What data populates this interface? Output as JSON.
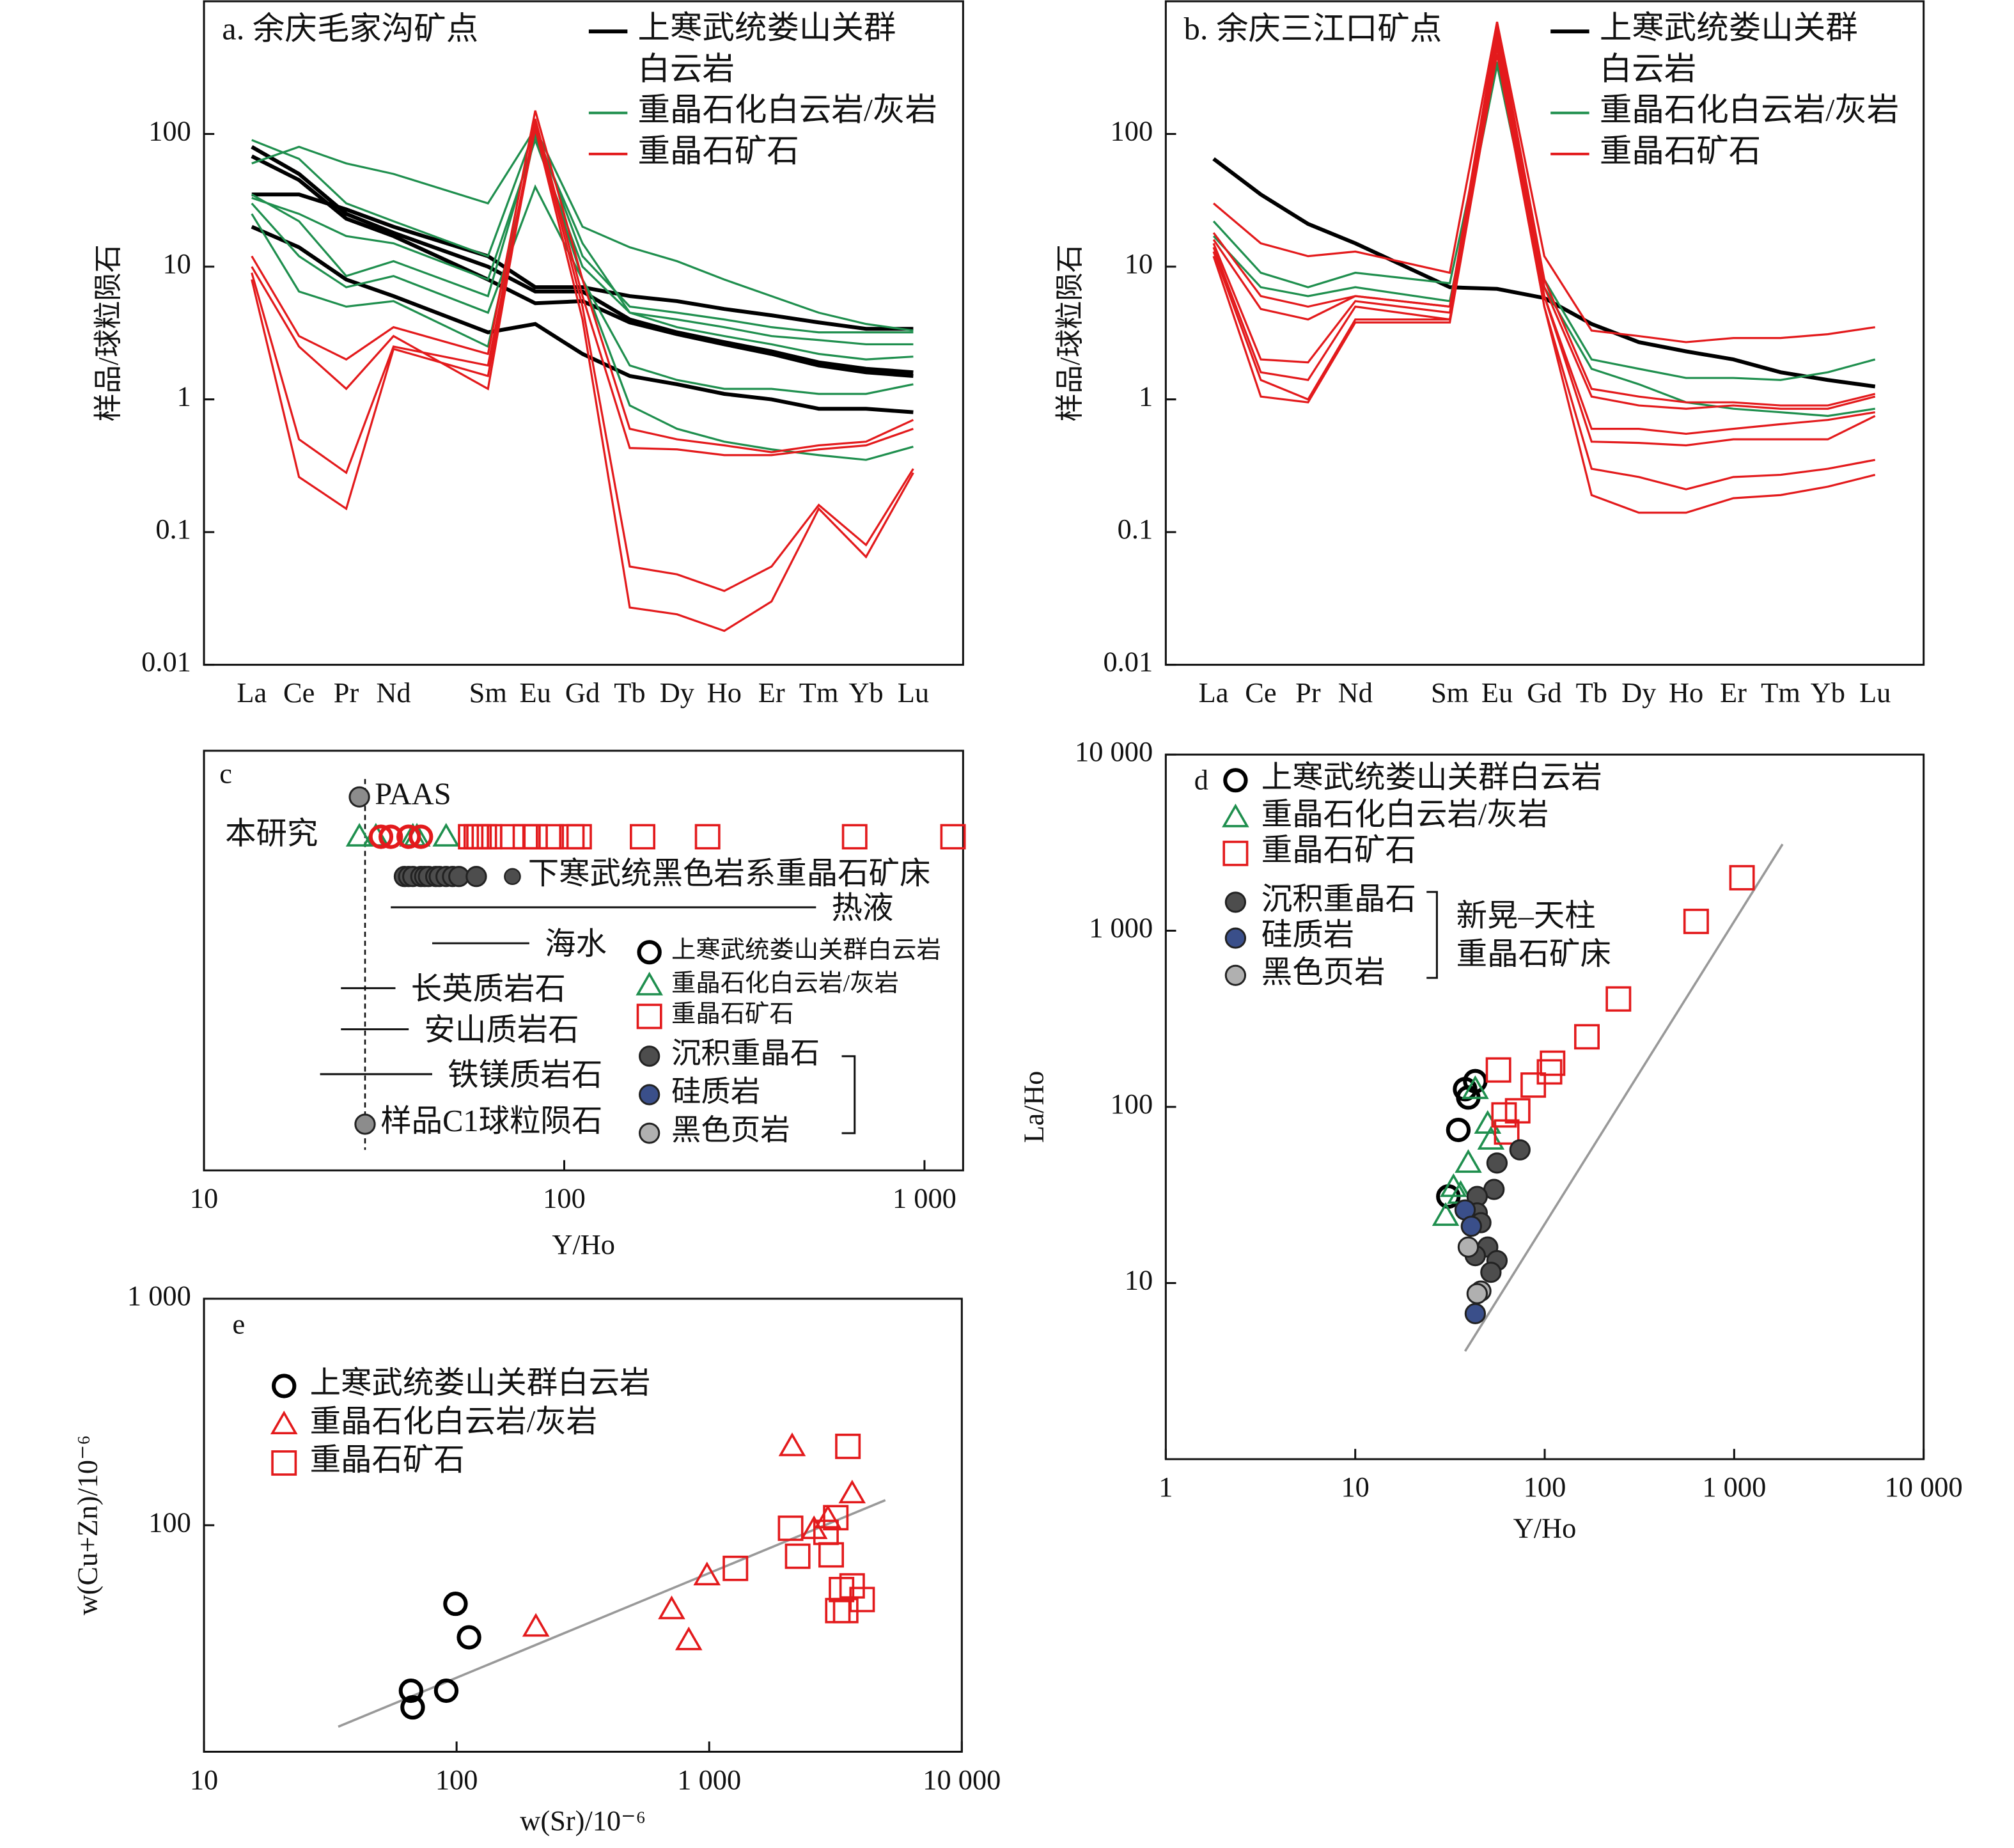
{
  "chart_data": [
    {
      "type": "line",
      "title": "a. 余庆毛家沟矿点",
      "ylabel": "样品/球粒陨石",
      "log_y": true,
      "categories": [
        "La",
        "Ce",
        "Pr",
        "Nd",
        "Sm",
        "Eu",
        "Gd",
        "Tb",
        "Dy",
        "Ho",
        "Er",
        "Tm",
        "Yb",
        "Lu"
      ],
      "ylim": [
        0.01,
        1000
      ],
      "yticks": [
        0.01,
        0.1,
        1,
        10,
        100
      ],
      "series": [
        {
          "name": "上寒武统娄山关群白云岩",
          "color": "#000000",
          "lines": [
            [
              80,
              50,
              25,
              18,
              10,
              6.5,
              6.5,
              4,
              3.2,
              2.7,
              2.3,
              1.9,
              1.7,
              1.6
            ],
            [
              35,
              35,
              27,
              20,
              12,
              7,
              7,
              6,
              5.5,
              4.8,
              4.3,
              3.8,
              3.4,
              3.4
            ],
            [
              20,
              14,
              8,
              6,
              3.2,
              3.7,
              2.2,
              1.5,
              1.3,
              1.1,
              1,
              0.85,
              0.85,
              0.8
            ],
            [
              68,
              45,
              23,
              17,
              8,
              5.3,
              5.5,
              3.8,
              3.1,
              2.6,
              2.2,
              1.8,
              1.6,
              1.5
            ]
          ]
        },
        {
          "name": "重晶石化白云岩/灰岩",
          "color": "#1f8f4e",
          "lines": [
            [
              90,
              65,
              30,
              22,
              12,
              110,
              20,
              14,
              11,
              8,
              6,
              4.5,
              3.7,
              3.3
            ],
            [
              60,
              80,
              60,
              50,
              30,
              110,
              12,
              5,
              4.5,
              4,
              3.5,
              3.2,
              3.2,
              3.2
            ],
            [
              33,
              25,
              17,
              15,
              8,
              90,
              10,
              4.5,
              4,
              3.5,
              3,
              2.8,
              2.6,
              2.6
            ],
            [
              30,
              12,
              7,
              8.5,
              4.5,
              40,
              8,
              0.9,
              0.6,
              0.48,
              0.42,
              0.38,
              0.35,
              0.44
            ],
            [
              25,
              6.5,
              5,
              5.5,
              2.5,
              100,
              15,
              4.5,
              3.5,
              3,
              2.6,
              2.2,
              2,
              2.1
            ],
            [
              35,
              22,
              8.5,
              11,
              6,
              100,
              8,
              1.8,
              1.4,
              1.2,
              1.2,
              1.1,
              1.1,
              1.3
            ]
          ]
        },
        {
          "name": "重晶石矿石",
          "color": "#e31a1c",
          "lines": [
            [
              12,
              3,
              2,
              3.5,
              2.2,
              150,
              8,
              0.6,
              0.5,
              0.45,
              0.4,
              0.45,
              0.48,
              0.7
            ],
            [
              10,
              2.5,
              1.2,
              3,
              1.2,
              130,
              6,
              0.43,
              0.42,
              0.38,
              0.38,
              0.42,
              0.45,
              0.6
            ],
            [
              9,
              0.5,
              0.28,
              2.5,
              1.8,
              120,
              5,
              0.055,
              0.048,
              0.036,
              0.055,
              0.16,
              0.08,
              0.3
            ],
            [
              8,
              0.26,
              0.15,
              2.4,
              1.5,
              110,
              4,
              0.027,
              0.024,
              0.018,
              0.03,
              0.15,
              0.065,
              0.28
            ]
          ]
        }
      ]
    },
    {
      "type": "line",
      "title": "b. 余庆三江口矿点",
      "ylabel": "样品/球粒陨石",
      "log_y": true,
      "categories": [
        "La",
        "Ce",
        "Pr",
        "Nd",
        "Sm",
        "Eu",
        "Gd",
        "Tb",
        "Dy",
        "Ho",
        "Er",
        "Tm",
        "Yb",
        "Lu"
      ],
      "ylim": [
        0.01,
        1000
      ],
      "yticks": [
        0.01,
        0.1,
        1,
        10,
        100
      ],
      "series": [
        {
          "name": "上寒武统娄山关群白云岩",
          "color": "#000000",
          "lines": [
            [
              65,
              35,
              21,
              15,
              7,
              6.8,
              5.8,
              3.7,
              2.7,
              2.3,
              2,
              1.6,
              1.4,
              1.25
            ]
          ]
        },
        {
          "name": "重晶石化白云岩/灰岩",
          "color": "#1f8f4e",
          "lines": [
            [
              22,
              9,
              7,
              9,
              7.5,
              350,
              8,
              2,
              1.7,
              1.45,
              1.45,
              1.4,
              1.6,
              2
            ],
            [
              17,
              7,
              6,
              7,
              5.5,
              330,
              7,
              1.7,
              1.3,
              0.95,
              0.85,
              0.8,
              0.75,
              0.85
            ]
          ]
        },
        {
          "name": "重晶石矿石",
          "color": "#e31a1c",
          "lines": [
            [
              30,
              15,
              12,
              13,
              9,
              700,
              12,
              3.3,
              3,
              2.7,
              2.9,
              2.9,
              3.1,
              3.5
            ],
            [
              18,
              6,
              5,
              6,
              5,
              650,
              8,
              1.2,
              1.05,
              0.95,
              0.95,
              0.9,
              0.9,
              1.1
            ],
            [
              16,
              4.8,
              4,
              6,
              5,
              600,
              7,
              1.05,
              0.9,
              0.85,
              0.9,
              0.85,
              0.85,
              1.05
            ],
            [
              15,
              2,
              1.9,
              5.5,
              4.5,
              550,
              6,
              0.6,
              0.6,
              0.55,
              0.6,
              0.65,
              0.7,
              0.8
            ],
            [
              14,
              1.6,
              1.4,
              5,
              4,
              500,
              6,
              0.48,
              0.47,
              0.45,
              0.5,
              0.5,
              0.5,
              0.75
            ],
            [
              13,
              1.4,
              1,
              4,
              4,
              450,
              5,
              0.3,
              0.26,
              0.21,
              0.26,
              0.27,
              0.3,
              0.35
            ],
            [
              12,
              1.05,
              0.95,
              3.8,
              3.8,
              400,
              5,
              0.19,
              0.14,
              0.14,
              0.18,
              0.19,
              0.22,
              0.27
            ]
          ]
        }
      ]
    },
    {
      "type": "strip",
      "label": "c",
      "xlabel": "Y/Ho",
      "log_x": true,
      "xlim": [
        10,
        1280
      ],
      "xticks": [
        10,
        100,
        {
          "value": 1000,
          "label": "1 000"
        }
      ],
      "reference_line": 28,
      "rows": [
        {
          "label": "PAAS",
          "series": [
            {
              "marker": "filled-circle",
              "color": "#8c8c8c",
              "values": [
                27
              ]
            }
          ]
        },
        {
          "label": "本研究",
          "series": [
            {
              "marker": "triangle",
              "color": "#1f8f4e",
              "values": [
                27,
                30,
                38,
                39,
                47
              ]
            },
            {
              "marker": "circle",
              "color": "#e31a1c",
              "values": [
                31,
                33,
                37,
                40
              ]
            },
            {
              "marker": "square",
              "color": "#e31a1c",
              "values": [
                55,
                57,
                58,
                60,
                62,
                72,
                78,
                83,
                92,
                105,
                110,
                165,
                250,
                640,
                1200
              ]
            }
          ]
        },
        {
          "label": "下寒武统黑色岩系重晶石矿床",
          "series": [
            {
              "marker": "filled-circle",
              "color": "#4d4d4d",
              "values": [
                36,
                37,
                38,
                40,
                41,
                42,
                44,
                45,
                47,
                49,
                51,
                57
              ]
            }
          ]
        },
        {
          "label": "热液",
          "range": [
            33,
            500
          ]
        },
        {
          "label": "海水",
          "range": [
            43,
            80
          ]
        },
        {
          "label": "长英质岩石",
          "range": [
            24,
            34
          ]
        },
        {
          "label": "安山质岩石",
          "range": [
            24,
            37
          ]
        },
        {
          "label": "铁镁质岩石",
          "range": [
            21,
            43
          ]
        },
        {
          "label": "样品C1球粒陨石",
          "series": [
            {
              "marker": "filled-circle",
              "color": "#8c8c8c",
              "values": [
                28
              ]
            }
          ]
        }
      ],
      "legend": [
        {
          "name": "上寒武统娄山关群白云岩",
          "marker": "circle",
          "color": "#000000"
        },
        {
          "name": "重晶石化白云岩/灰岩",
          "marker": "triangle",
          "color": "#1f8f4e"
        },
        {
          "name": "重晶石矿石",
          "marker": "square",
          "color": "#e31a1c"
        },
        {
          "name": "沉积重晶石",
          "marker": "filled-circle",
          "color": "#4d4d4d"
        },
        {
          "name": "硅质岩",
          "marker": "filled-circle",
          "color": "#3a4f8a"
        },
        {
          "name": "黑色页岩",
          "marker": "filled-circle",
          "color": "#b0b0b0"
        }
      ]
    },
    {
      "type": "scatter",
      "label": "d",
      "xlabel": "Y/Ho",
      "ylabel": "La/Ho",
      "log_x": true,
      "log_y": true,
      "xlim": [
        1,
        10000
      ],
      "ylim": [
        1,
        10000
      ],
      "xticks": [
        1,
        10,
        100,
        {
          "value": 1000,
          "label": "1 000"
        },
        {
          "value": 10000,
          "label": "10 000"
        }
      ],
      "yticks": [
        10,
        100,
        {
          "value": 1000,
          "label": "1 000"
        },
        {
          "value": 10000,
          "label": "10 000"
        }
      ],
      "series": [
        {
          "name": "上寒武统娄山关群白云岩",
          "marker": "circle",
          "color": "#000000",
          "x": [
            31,
            38,
            39.5,
            43,
            35
          ],
          "y": [
            31,
            126,
            113,
            140,
            74
          ]
        },
        {
          "name": "重晶石化白云岩/灰岩",
          "marker": "triangle",
          "color": "#1f8f4e",
          "x": [
            30,
            33,
            39.5,
            50,
            52,
            43,
            36
          ],
          "y": [
            24,
            35,
            48,
            80,
            65,
            126,
            32
          ]
        },
        {
          "name": "重晶石矿石",
          "marker": "square",
          "color": "#e31a1c",
          "x": [
            57,
            61,
            63,
            72,
            87,
            106,
            110,
            167,
            245,
            630,
            1100
          ],
          "y": [
            162,
            90,
            72,
            95,
            133,
            158,
            177,
            250,
            410,
            1130,
            2000
          ]
        },
        {
          "name": "沉积重晶石",
          "marker": "filled-circle",
          "color": "#4d4d4d",
          "x": [
            74,
            56,
            54,
            44,
            44,
            46,
            50,
            56,
            52,
            43
          ],
          "y": [
            57,
            48,
            34,
            31,
            25,
            22,
            16,
            13.4,
            11.5,
            14.3
          ]
        },
        {
          "name": "硅质岩",
          "marker": "filled-circle",
          "color": "#3a4f8a",
          "x": [
            38,
            41,
            43
          ],
          "y": [
            26,
            21,
            6.7
          ]
        },
        {
          "name": "黑色页岩",
          "marker": "filled-circle",
          "color": "#b0b0b0",
          "x": [
            39.5,
            46,
            44
          ],
          "y": [
            16,
            9,
            8.7
          ]
        }
      ],
      "trend": {
        "color": "#999999",
        "x": [
          38,
          1800
        ],
        "y": [
          4.1,
          3100
        ]
      },
      "bracket_label": [
        "新晃–天柱",
        "重晶石矿床"
      ]
    },
    {
      "type": "scatter",
      "label": "e",
      "xlabel": "w(Sr)/10⁻⁶",
      "ylabel": "w(Cu+Zn)/10⁻⁶",
      "log_x": true,
      "log_y": true,
      "xlim": [
        10,
        10000
      ],
      "ylim": [
        10,
        1000
      ],
      "xticks": [
        10,
        100,
        {
          "value": 1000,
          "label": "1 000"
        },
        {
          "value": 10000,
          "label": "10 000"
        }
      ],
      "yticks": [
        100,
        {
          "value": 1000,
          "label": "1 000"
        }
      ],
      "series": [
        {
          "name": "上寒武统娄山关群白云岩",
          "marker": "circle",
          "color": "#000000",
          "x": [
            99,
            112,
            66,
            67,
            91
          ],
          "y": [
            45,
            32,
            18.6,
            15.7,
            18.6
          ]
        },
        {
          "name": "重晶石化白云岩/灰岩",
          "marker": "triangle",
          "color": "#e31a1c",
          "x": [
            2130,
            3680,
            2600,
            2950,
            980,
            710,
            830,
            206
          ],
          "y": [
            223,
            138,
            96,
            107,
            60,
            42.5,
            31,
            35.6
          ]
        },
        {
          "name": "重晶石矿石",
          "marker": "square",
          "color": "#e31a1c",
          "x": [
            3540,
            2100,
            2240,
            3040,
            3170,
            2900,
            1270,
            3680,
            3340,
            3230,
            3470,
            4030
          ],
          "y": [
            223,
            97,
            73,
            74,
            108,
            93,
            64.5,
            54,
            52,
            42,
            42,
            47
          ]
        }
      ],
      "trend": {
        "color": "#999999",
        "x": [
          34,
          4980
        ],
        "y": [
          12.9,
          129
        ]
      }
    }
  ]
}
